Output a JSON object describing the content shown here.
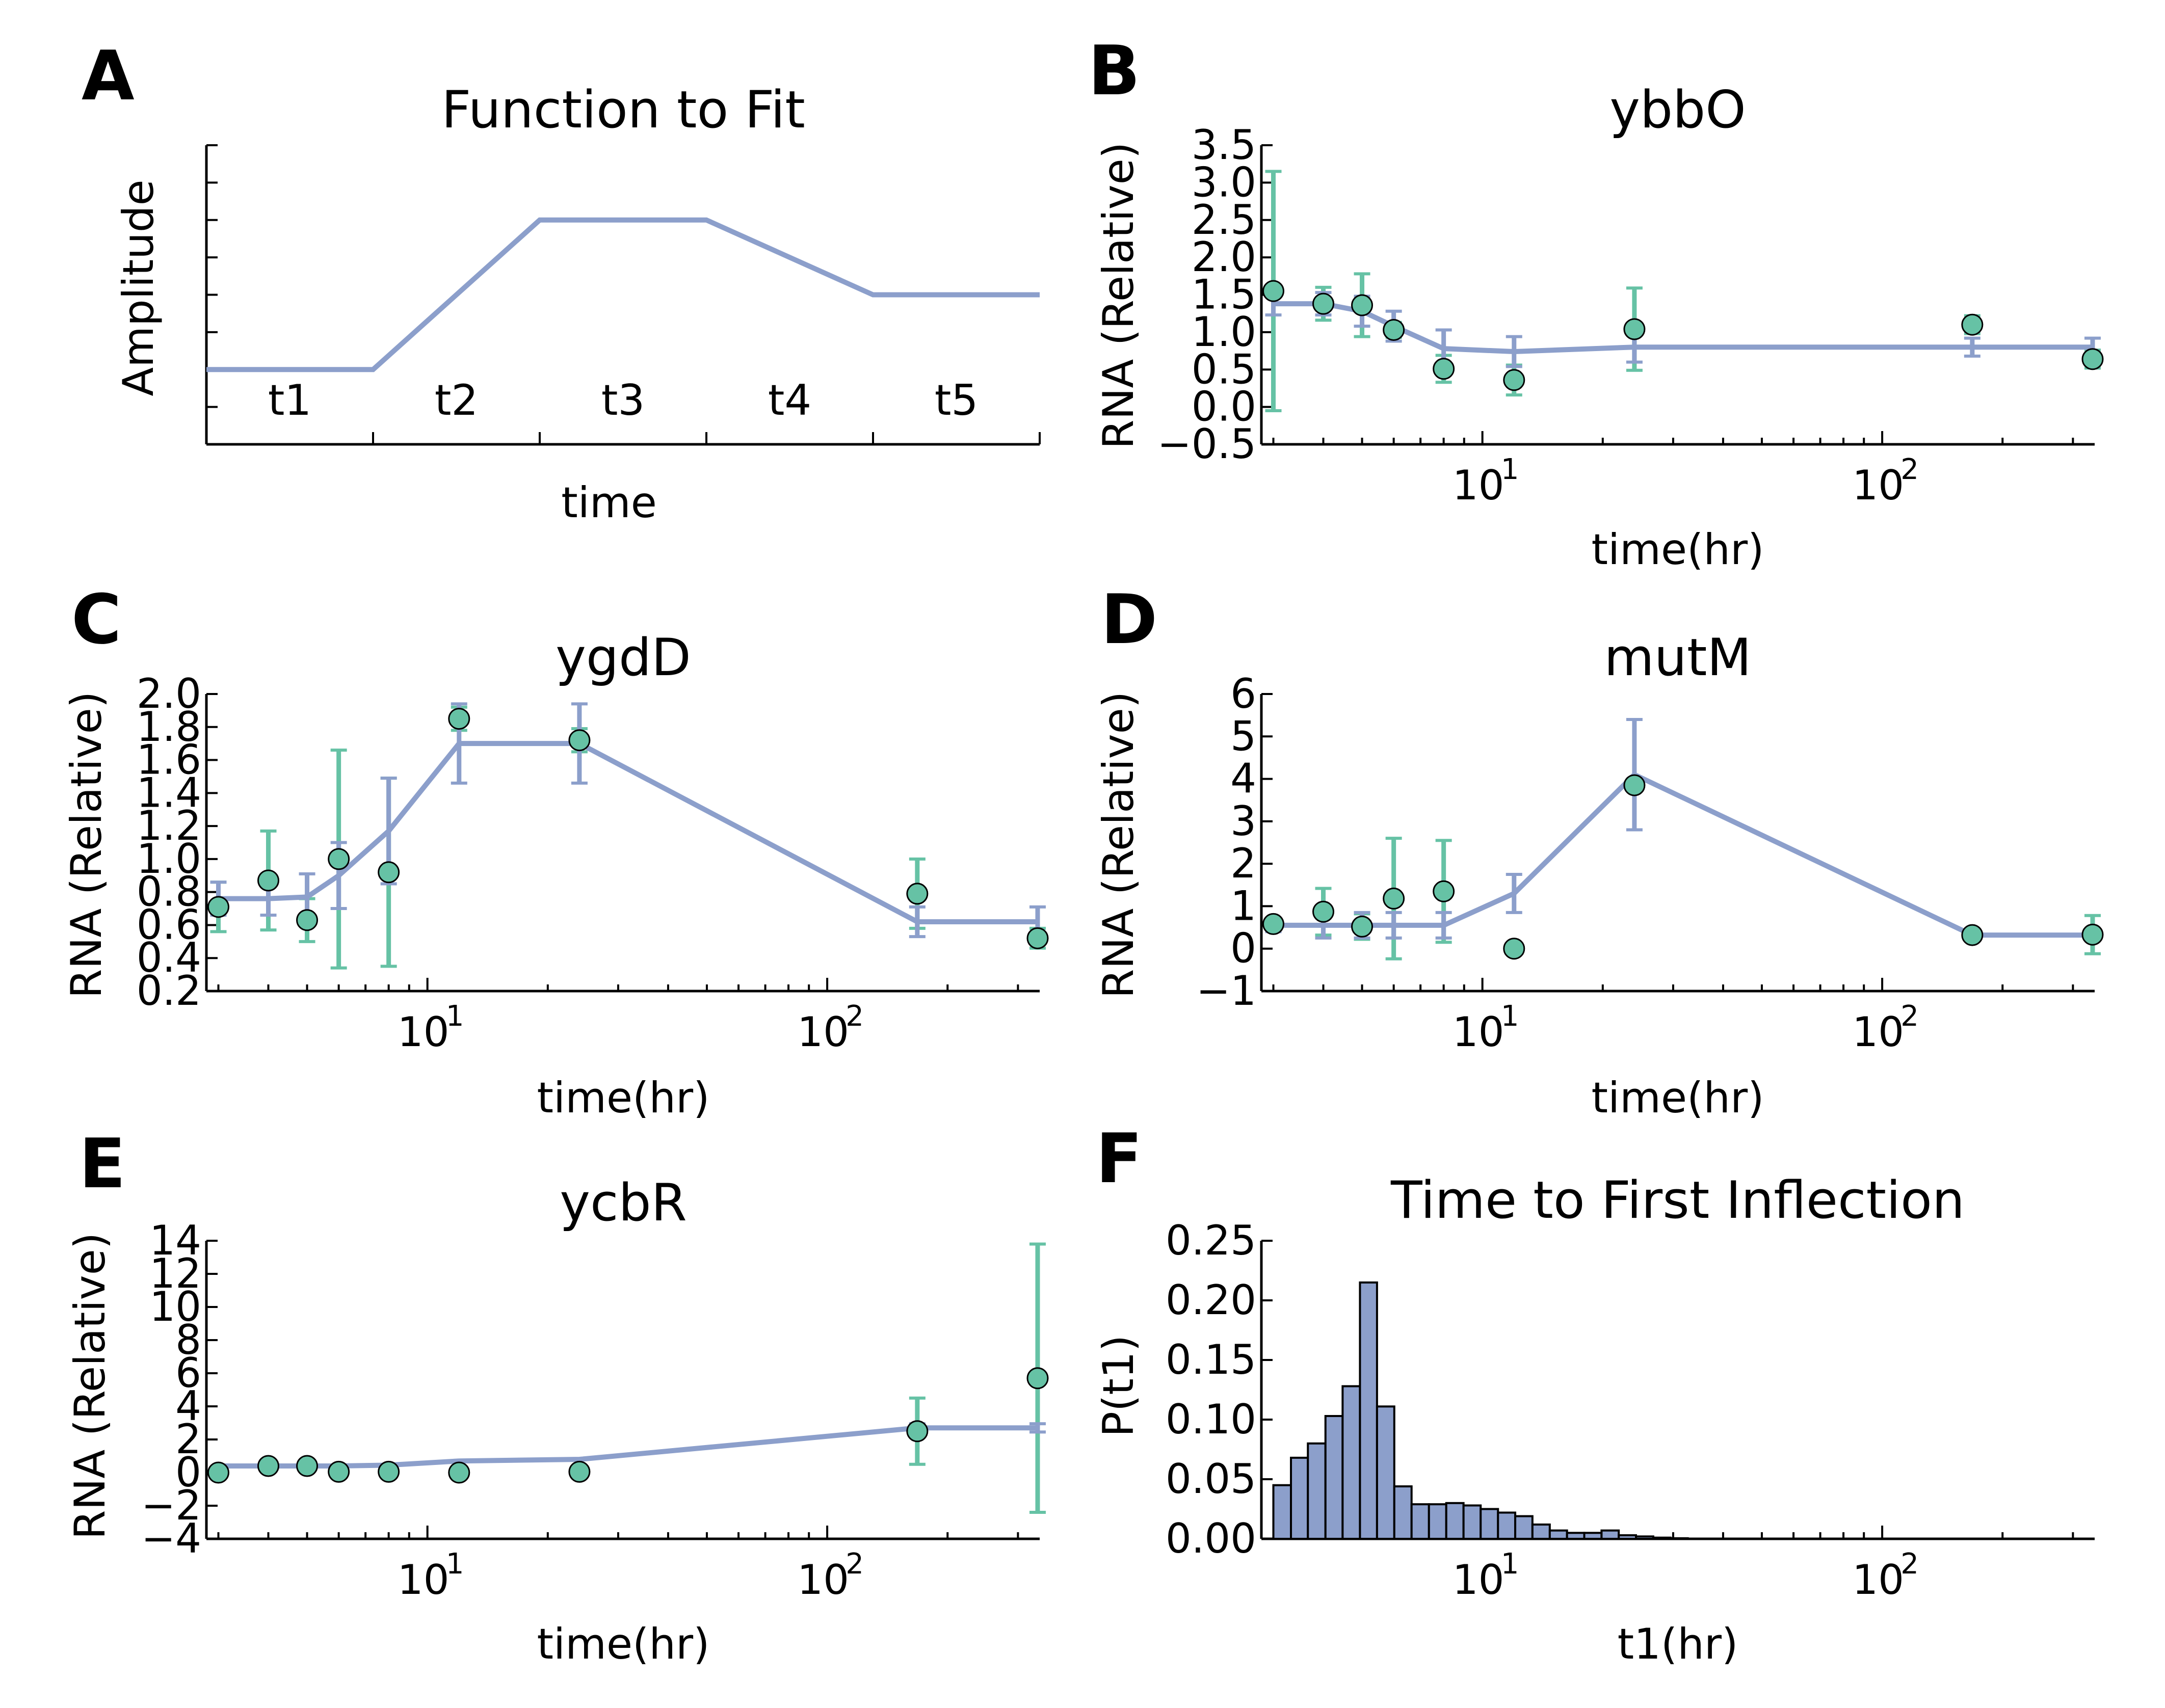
{
  "colors": {
    "model": "#8c9fcb",
    "data": "#66c2a5",
    "bar": "#8c9fcb",
    "edge": "#000000"
  },
  "panels": {
    "A": {
      "letter": "A",
      "title": "Function to Fit",
      "xlabel": "time",
      "ylabel": "Amplitude"
    },
    "B": {
      "letter": "B",
      "title": "ybbO",
      "xlabel": "time(hr)",
      "ylabel": "RNA (Relative)"
    },
    "C": {
      "letter": "C",
      "title": "ygdD",
      "xlabel": "time(hr)",
      "ylabel": "RNA (Relative)"
    },
    "D": {
      "letter": "D",
      "title": "mutM",
      "xlabel": "time(hr)",
      "ylabel": "RNA (Relative)"
    },
    "E": {
      "letter": "E",
      "title": "ycbR",
      "xlabel": "time(hr)",
      "ylabel": "RNA (Relative)"
    },
    "F": {
      "letter": "F",
      "title": "Time to First Inflection",
      "xlabel": "t1(hr)",
      "ylabel": "P(t1)"
    }
  },
  "chart_data": [
    {
      "panel": "A",
      "type": "line",
      "title": "Function to Fit",
      "xlabel": "time",
      "ylabel": "Amplitude",
      "segments": [
        "t1",
        "t2",
        "t3",
        "t4",
        "t5"
      ],
      "x": [
        0,
        1,
        2,
        3,
        4,
        5
      ],
      "y": [
        2,
        2,
        6,
        6,
        4,
        4
      ],
      "xlim": [
        0,
        5
      ],
      "ylim": [
        0,
        8
      ],
      "yticks_labeled": false
    },
    {
      "panel": "B",
      "type": "scatter",
      "title": "ybbO",
      "xlabel": "time(hr)",
      "ylabel": "RNA (Relative)",
      "xscale": "log",
      "xlim": [
        2.8,
        340
      ],
      "ylim": [
        -0.5,
        3.5
      ],
      "yticks": [
        -0.5,
        0.0,
        0.5,
        1.0,
        1.5,
        2.0,
        2.5,
        3.0,
        3.5
      ],
      "ytick_labels": [
        "−0.5",
        "0.0",
        "0.5",
        "1.0",
        "1.5",
        "2.0",
        "2.5",
        "3.0",
        "3.5"
      ],
      "xticks": [
        10,
        100
      ],
      "xtick_labels": [
        [
          "10",
          "1"
        ],
        [
          "10",
          "2"
        ]
      ],
      "series": [
        {
          "name": "",
          "kind": "model",
          "x": [
            3,
            4,
            5,
            6,
            8,
            12,
            24,
            168,
            336
          ],
          "y": [
            1.38,
            1.38,
            1.28,
            1.08,
            0.78,
            0.74,
            0.8,
            0.8,
            0.8
          ],
          "err": [
            0.15,
            0.15,
            0.2,
            0.2,
            0.25,
            0.2,
            0.2,
            0.12,
            0.12
          ]
        },
        {
          "name": "",
          "kind": "data",
          "x": [
            3,
            4,
            5,
            6,
            8,
            12,
            24,
            168,
            336
          ],
          "y": [
            1.55,
            1.38,
            1.36,
            1.03,
            0.51,
            0.36,
            1.04,
            1.1,
            0.64
          ],
          "err": [
            1.6,
            0.22,
            0.42,
            0.1,
            0.18,
            0.2,
            0.55,
            0.12,
            0.12
          ]
        }
      ]
    },
    {
      "panel": "C",
      "type": "scatter",
      "title": "ygdD",
      "xlabel": "time(hr)",
      "ylabel": "RNA (Relative)",
      "xscale": "log",
      "xlim": [
        2.8,
        340
      ],
      "ylim": [
        0.2,
        2.0
      ],
      "yticks": [
        0.2,
        0.4,
        0.6,
        0.8,
        1.0,
        1.2,
        1.4,
        1.6,
        1.8,
        2.0
      ],
      "ytick_labels": [
        "0.2",
        "0.4",
        "0.6",
        "0.8",
        "1.0",
        "1.2",
        "1.4",
        "1.6",
        "1.8",
        "2.0"
      ],
      "xticks": [
        10,
        100
      ],
      "xtick_labels": [
        [
          "10",
          "1"
        ],
        [
          "10",
          "2"
        ]
      ],
      "series": [
        {
          "name": "",
          "kind": "model",
          "x": [
            3,
            4,
            5,
            6,
            8,
            12,
            24,
            168,
            336
          ],
          "y": [
            0.76,
            0.76,
            0.77,
            0.9,
            1.17,
            1.7,
            1.7,
            0.62,
            0.62
          ],
          "err": [
            0.1,
            0.1,
            0.14,
            0.2,
            0.32,
            0.24,
            0.24,
            0.09,
            0.09
          ]
        },
        {
          "name": "",
          "kind": "data",
          "x": [
            3,
            4,
            5,
            6,
            8,
            12,
            24,
            168,
            336
          ],
          "y": [
            0.71,
            0.87,
            0.63,
            1.0,
            0.92,
            1.85,
            1.72,
            0.79,
            0.52
          ],
          "err": [
            0.15,
            0.3,
            0.13,
            0.66,
            0.57,
            0.07,
            0.07,
            0.21,
            0.06
          ]
        }
      ]
    },
    {
      "panel": "D",
      "type": "scatter",
      "title": "mutM",
      "xlabel": "time(hr)",
      "ylabel": "RNA (Relative)",
      "xscale": "log",
      "xlim": [
        2.8,
        340
      ],
      "ylim": [
        -1,
        6
      ],
      "yticks": [
        -1,
        0,
        1,
        2,
        3,
        4,
        5,
        6
      ],
      "ytick_labels": [
        "−1",
        "0",
        "1",
        "2",
        "3",
        "4",
        "5",
        "6"
      ],
      "xticks": [
        10,
        100
      ],
      "xtick_labels": [
        [
          "10",
          "1"
        ],
        [
          "10",
          "2"
        ]
      ],
      "series": [
        {
          "name": "",
          "kind": "model",
          "x": [
            3,
            4,
            5,
            6,
            8,
            12,
            24,
            168,
            336
          ],
          "y": [
            0.55,
            0.55,
            0.55,
            0.55,
            0.55,
            1.3,
            4.1,
            0.32,
            0.32
          ],
          "err": [
            0.15,
            0.3,
            0.3,
            0.3,
            0.3,
            0.45,
            1.3,
            0.12,
            0.12
          ]
        },
        {
          "name": "",
          "kind": "data",
          "x": [
            3,
            4,
            5,
            6,
            8,
            12,
            24,
            168,
            336
          ],
          "y": [
            0.58,
            0.87,
            0.52,
            1.18,
            1.35,
            0.0,
            3.85,
            0.32,
            0.33
          ],
          "err": [
            0.1,
            0.55,
            0.3,
            1.42,
            1.2,
            0.0,
            0.08,
            0.1,
            0.45
          ]
        }
      ]
    },
    {
      "panel": "E",
      "type": "scatter",
      "title": "ycbR",
      "xlabel": "time(hr)",
      "ylabel": "RNA (Relative)",
      "xscale": "log",
      "xlim": [
        2.8,
        340
      ],
      "ylim": [
        -4,
        14
      ],
      "yticks": [
        -4,
        -2,
        0,
        2,
        4,
        6,
        8,
        10,
        12,
        14
      ],
      "ytick_labels": [
        "−4",
        "−2",
        "0",
        "2",
        "4",
        "6",
        "8",
        "10",
        "12",
        "14"
      ],
      "xticks": [
        10,
        100
      ],
      "xtick_labels": [
        [
          "10",
          "1"
        ],
        [
          "10",
          "2"
        ]
      ],
      "series": [
        {
          "name": "",
          "kind": "model",
          "x": [
            3,
            4,
            5,
            6,
            8,
            12,
            24,
            168,
            336
          ],
          "y": [
            0.4,
            0.4,
            0.4,
            0.4,
            0.45,
            0.7,
            0.8,
            2.7,
            2.7
          ],
          "err": [
            0,
            0,
            0,
            0,
            0,
            0,
            0,
            0.25,
            0.25
          ]
        },
        {
          "name": "",
          "kind": "data",
          "x": [
            3,
            4,
            5,
            6,
            8,
            12,
            24,
            168,
            336
          ],
          "y": [
            0.0,
            0.4,
            0.4,
            0.05,
            0.05,
            0.0,
            0.05,
            2.5,
            5.7
          ],
          "err": [
            0,
            0,
            0,
            0,
            0,
            0,
            0,
            2.0,
            8.1
          ]
        }
      ]
    },
    {
      "panel": "F",
      "type": "bar",
      "title": "Time to First Inflection",
      "xlabel": "t1(hr)",
      "ylabel": "P(t1)",
      "xscale": "log",
      "xlim": [
        2.8,
        340
      ],
      "ylim": [
        0,
        0.25
      ],
      "yticks": [
        0.0,
        0.05,
        0.1,
        0.15,
        0.2,
        0.25
      ],
      "ytick_labels": [
        "0.00",
        "0.05",
        "0.10",
        "0.15",
        "0.20",
        "0.25"
      ],
      "xticks": [
        10,
        100
      ],
      "xtick_labels": [
        [
          "10",
          "1"
        ],
        [
          "10",
          "2"
        ]
      ],
      "bin_edges": [
        3.0,
        3.32,
        3.66,
        4.05,
        4.47,
        4.94,
        5.45,
        6.02,
        6.65,
        7.35,
        8.12,
        8.97,
        9.9,
        10.94,
        12.08,
        13.34,
        14.74,
        16.28,
        17.98,
        19.86,
        21.93,
        24.22,
        26.75,
        29.55,
        32.64
      ],
      "values": [
        0.045,
        0.068,
        0.08,
        0.103,
        0.128,
        0.215,
        0.111,
        0.044,
        0.029,
        0.029,
        0.03,
        0.028,
        0.025,
        0.022,
        0.019,
        0.012,
        0.007,
        0.005,
        0.005,
        0.007,
        0.003,
        0.002,
        0.001,
        0.0005
      ]
    }
  ]
}
